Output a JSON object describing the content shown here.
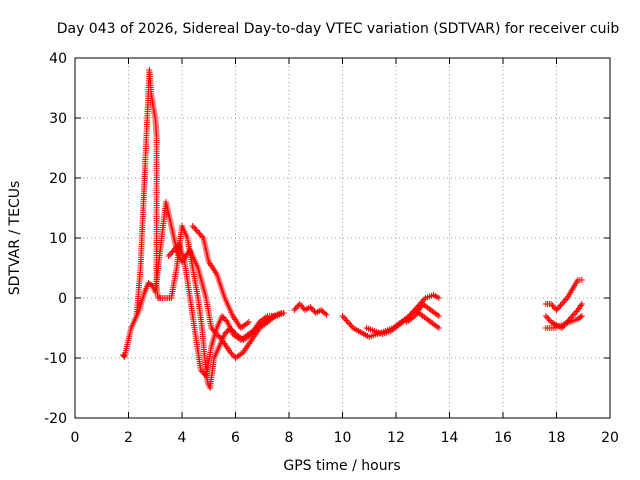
{
  "chart_data": {
    "type": "scatter",
    "title": "Day 043 of 2026, Sidereal Day-to-day VTEC variation (SDTVAR) for receiver cuib",
    "xlabel": "GPS time / hours",
    "ylabel": "SDTVAR / TECUs",
    "xlim": [
      0,
      20
    ],
    "ylim": [
      -20,
      40
    ],
    "grid": true,
    "x_ticks": [
      "0",
      "2",
      "4",
      "6",
      "8",
      "10",
      "12",
      "14",
      "16",
      "18",
      "20"
    ],
    "y_ticks": [
      "-20",
      "-10",
      "0",
      "10",
      "20",
      "30",
      "40"
    ],
    "marker": "+",
    "series": [
      {
        "name": "SDTVAR",
        "color": "#ff0000",
        "trace_x": [
          1.8,
          1.85,
          2.1,
          2.3,
          2.45,
          2.55,
          2.62,
          2.7,
          2.78,
          2.85,
          2.92,
          3.0,
          3.05,
          3.05,
          3.1,
          3.2,
          3.4,
          3.6,
          3.8,
          4.0,
          4.2,
          4.4,
          4.6,
          4.75,
          4.85,
          4.95,
          5.05,
          5.2,
          5.4,
          5.6,
          5.8,
          6.0,
          6.3,
          6.6,
          6.9,
          7.2,
          7.5,
          7.8
        ],
        "trace_y": [
          -9.5,
          -9.8,
          -5,
          -3,
          5,
          15,
          22,
          30,
          38,
          34,
          32,
          30,
          27,
          2,
          0,
          0,
          0,
          0,
          5,
          12,
          10,
          5,
          0,
          -5,
          -10,
          -14,
          -15,
          -10,
          -8,
          -6,
          -5,
          -6,
          -7,
          -6,
          -4,
          -3,
          -3,
          -2.5
        ],
        "trace_x2": [
          2.2,
          2.4,
          2.6,
          2.75,
          2.9,
          3.0,
          3.4,
          3.6,
          3.8,
          4.0,
          4.3,
          4.6,
          4.9,
          5.1,
          5.5,
          5.8,
          6.0,
          6.3,
          6.6,
          6.9,
          7.2,
          7.5,
          7.8
        ],
        "trace_y2": [
          -4,
          -2,
          1,
          2.5,
          2,
          1,
          16,
          12,
          8,
          6,
          8,
          5,
          0,
          -5,
          -7,
          -9,
          -10,
          -9,
          -7,
          -5,
          -4,
          -3,
          -2.5
        ],
        "trace_x3": [
          3.5,
          3.7,
          3.9,
          4.1,
          4.3,
          4.5,
          4.7,
          4.9,
          5.1,
          5.3,
          5.5,
          5.7,
          5.9,
          6.2,
          6.5,
          6.8,
          7.1,
          7.4,
          7.7
        ],
        "trace_y3": [
          7,
          8,
          9,
          6,
          0,
          -6,
          -12,
          -13,
          -8,
          -5,
          -3,
          -4,
          -6,
          -7,
          -6,
          -5,
          -4,
          -3,
          -2.5
        ],
        "trace_x4": [
          4.4,
          4.6,
          4.8,
          5.0,
          5.3,
          5.6,
          5.9,
          6.2,
          6.5
        ],
        "trace_y4": [
          12,
          11,
          10,
          6,
          4,
          0,
          -3,
          -5,
          -4
        ],
        "trace_x5": [
          8.2,
          8.4,
          8.6,
          8.8,
          9.0,
          9.2,
          9.4
        ],
        "trace_y5": [
          -2,
          -1,
          -2,
          -1.5,
          -2.5,
          -2,
          -2.8
        ],
        "trace_x6": [
          10.0,
          10.2,
          10.4,
          10.6,
          10.8,
          11.0,
          11.3,
          11.6,
          11.9,
          12.2,
          12.5,
          12.8,
          13.1,
          13.4,
          13.6
        ],
        "trace_y6": [
          -3,
          -4,
          -5,
          -5.5,
          -6,
          -6.5,
          -6,
          -5.5,
          -5,
          -4,
          -3,
          -1.5,
          0,
          0.5,
          0
        ],
        "trace_x7": [
          10.9,
          11.2,
          11.5,
          11.8,
          12.1,
          12.4,
          12.7,
          13.0,
          13.3,
          13.6
        ],
        "trace_y7": [
          -5,
          -5.5,
          -6,
          -5.5,
          -4.5,
          -3.5,
          -2,
          -3,
          -4,
          -5
        ],
        "trace_x8": [
          12.4,
          12.7,
          13.0,
          13.3,
          13.6
        ],
        "trace_y8": [
          -4,
          -3,
          -1,
          -2,
          -3
        ],
        "trace_x9": [
          17.6,
          17.8,
          18.0,
          18.2,
          18.4,
          18.6,
          18.8,
          18.95
        ],
        "trace_y9": [
          -1,
          -1,
          -2,
          -1,
          0,
          1.5,
          3,
          3
        ],
        "trace_x10": [
          17.6,
          17.8,
          18.0,
          18.2,
          18.4,
          18.6,
          18.8,
          18.95
        ],
        "trace_y10": [
          -3,
          -4,
          -4.5,
          -5,
          -4,
          -3,
          -2,
          -1
        ],
        "trace_x11": [
          17.6,
          17.9,
          18.2,
          18.5,
          18.8,
          18.95
        ],
        "trace_y11": [
          -5,
          -5,
          -4.5,
          -4,
          -3.5,
          -3
        ]
      }
    ]
  }
}
